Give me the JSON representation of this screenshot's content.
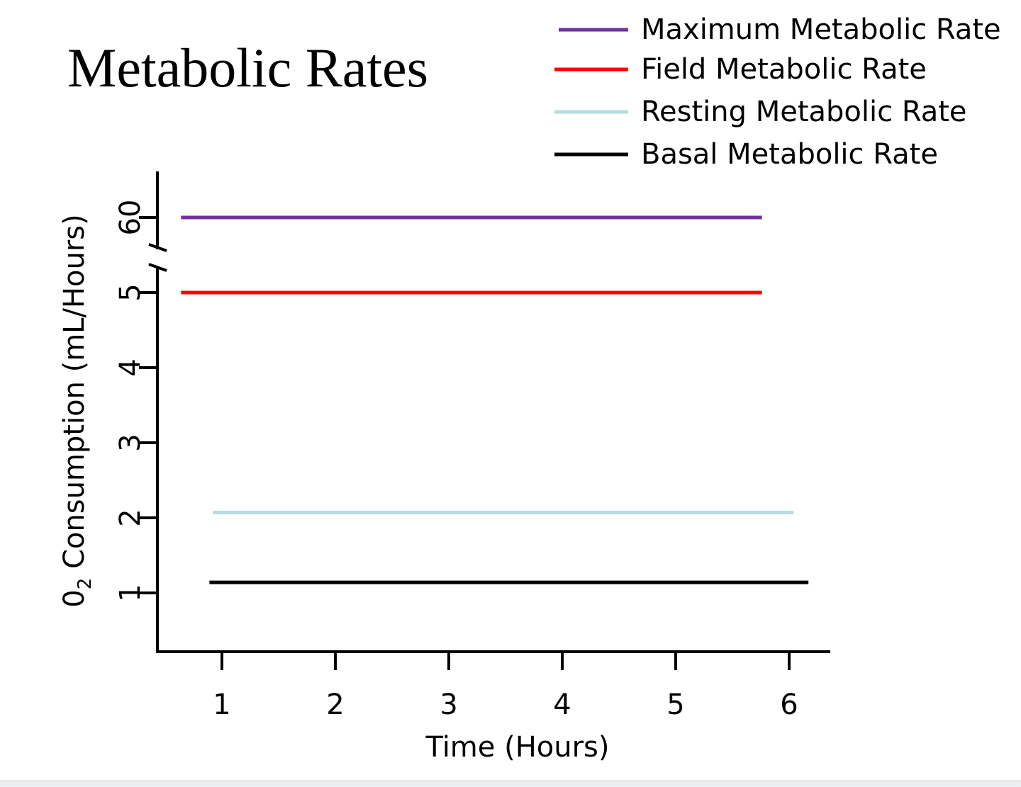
{
  "chart_data": {
    "type": "line",
    "title": "Metabolic Rates",
    "xlabel": "Time (Hours)",
    "ylabel_main": "0",
    "ylabel_sub": "2",
    "ylabel_rest": " Consumption (mL/Hours)",
    "x_ticks": [
      "1",
      "2",
      "3",
      "4",
      "5",
      "6"
    ],
    "y_ticks": [
      "1",
      "2",
      "3",
      "4",
      "5",
      "60"
    ],
    "y_axis_break": "between 5 and 60",
    "grid": false,
    "legend_position": "top-right",
    "series": [
      {
        "name": "Maximum Metabolic Rate",
        "color": "#7030a0",
        "x": [
          0.64,
          5.76
        ],
        "y": [
          60,
          60
        ]
      },
      {
        "name": "Field Metabolic Rate",
        "color": "#ff0000",
        "x": [
          0.64,
          5.76
        ],
        "y": [
          5.0,
          5.0
        ]
      },
      {
        "name": "Resting Metabolic Rate",
        "color": "#b7dde0",
        "x": [
          0.92,
          6.04
        ],
        "y": [
          2.07,
          2.07
        ]
      },
      {
        "name": "Basal Metabolic Rate",
        "color": "#000000",
        "x": [
          0.89,
          6.17
        ],
        "y": [
          1.14,
          1.14
        ]
      }
    ]
  }
}
